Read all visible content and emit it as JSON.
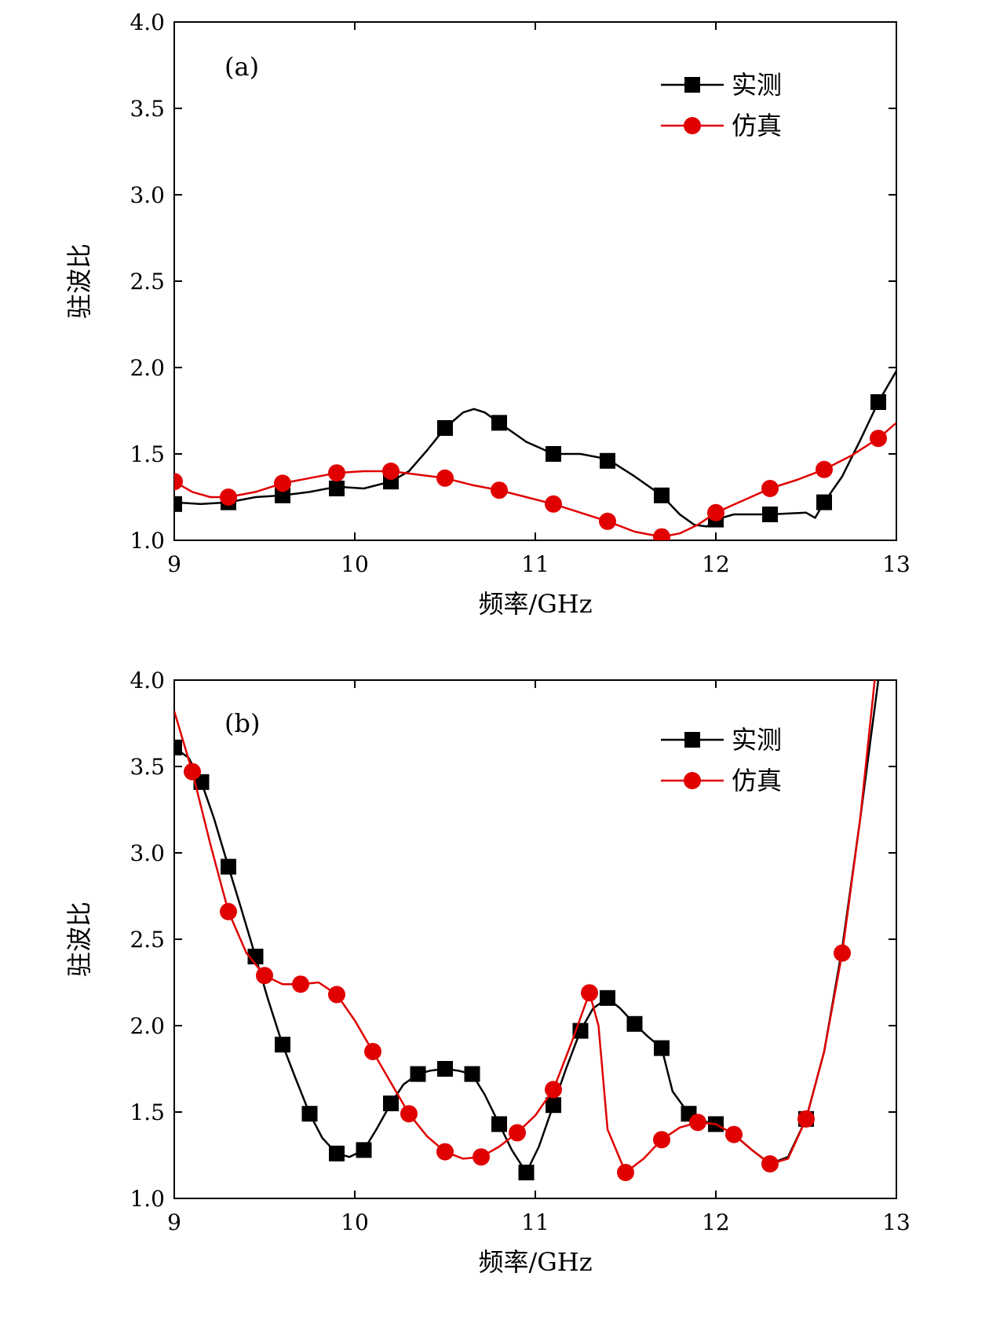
{
  "chart_data": [
    {
      "type": "line",
      "panel_label": "(a)",
      "xlabel": "频率/GHz",
      "ylabel": "驻波比",
      "xlim": [
        9,
        13
      ],
      "ylim": [
        1.0,
        4.0
      ],
      "xticks": [
        9,
        10,
        11,
        12,
        13
      ],
      "yticks": [
        1.0,
        1.5,
        2.0,
        2.5,
        3.0,
        3.5,
        4.0
      ],
      "ytick_labels": [
        "1.0",
        "1.5",
        "2.0",
        "2.5",
        "3.0",
        "3.5",
        "4.0"
      ],
      "legend_position": "top-right",
      "series": [
        {
          "name": "实测",
          "color": "#000000",
          "marker": "square",
          "markers": [
            [
              9.0,
              1.21
            ],
            [
              9.3,
              1.22
            ],
            [
              9.6,
              1.26
            ],
            [
              9.9,
              1.3
            ],
            [
              10.2,
              1.34
            ],
            [
              10.5,
              1.65
            ],
            [
              10.8,
              1.68
            ],
            [
              11.1,
              1.5
            ],
            [
              11.4,
              1.46
            ],
            [
              11.7,
              1.26
            ],
            [
              12.0,
              1.12
            ],
            [
              12.3,
              1.15
            ],
            [
              12.6,
              1.22
            ],
            [
              12.9,
              1.8
            ]
          ],
          "curve": [
            [
              9.0,
              1.22
            ],
            [
              9.15,
              1.21
            ],
            [
              9.3,
              1.22
            ],
            [
              9.45,
              1.25
            ],
            [
              9.6,
              1.26
            ],
            [
              9.75,
              1.28
            ],
            [
              9.9,
              1.31
            ],
            [
              10.05,
              1.3
            ],
            [
              10.2,
              1.34
            ],
            [
              10.3,
              1.4
            ],
            [
              10.4,
              1.52
            ],
            [
              10.5,
              1.65
            ],
            [
              10.6,
              1.74
            ],
            [
              10.66,
              1.76
            ],
            [
              10.72,
              1.74
            ],
            [
              10.8,
              1.68
            ],
            [
              10.95,
              1.57
            ],
            [
              11.1,
              1.5
            ],
            [
              11.25,
              1.5
            ],
            [
              11.4,
              1.47
            ],
            [
              11.55,
              1.37
            ],
            [
              11.7,
              1.26
            ],
            [
              11.8,
              1.15
            ],
            [
              11.88,
              1.09
            ],
            [
              11.95,
              1.08
            ],
            [
              12.0,
              1.12
            ],
            [
              12.1,
              1.15
            ],
            [
              12.3,
              1.15
            ],
            [
              12.5,
              1.16
            ],
            [
              12.55,
              1.13
            ],
            [
              12.6,
              1.22
            ],
            [
              12.7,
              1.37
            ],
            [
              12.8,
              1.58
            ],
            [
              12.9,
              1.8
            ],
            [
              13.0,
              1.98
            ]
          ]
        },
        {
          "name": "仿真",
          "color": "#e00000",
          "marker": "circle",
          "markers": [
            [
              9.0,
              1.34
            ],
            [
              9.3,
              1.25
            ],
            [
              9.6,
              1.33
            ],
            [
              9.9,
              1.39
            ],
            [
              10.2,
              1.4
            ],
            [
              10.5,
              1.36
            ],
            [
              10.8,
              1.29
            ],
            [
              11.1,
              1.21
            ],
            [
              11.4,
              1.11
            ],
            [
              11.7,
              1.02
            ],
            [
              12.0,
              1.16
            ],
            [
              12.3,
              1.3
            ],
            [
              12.6,
              1.41
            ],
            [
              12.9,
              1.59
            ]
          ],
          "curve": [
            [
              9.0,
              1.34
            ],
            [
              9.1,
              1.28
            ],
            [
              9.2,
              1.25
            ],
            [
              9.3,
              1.25
            ],
            [
              9.45,
              1.28
            ],
            [
              9.6,
              1.33
            ],
            [
              9.75,
              1.36
            ],
            [
              9.9,
              1.39
            ],
            [
              10.05,
              1.4
            ],
            [
              10.2,
              1.4
            ],
            [
              10.35,
              1.38
            ],
            [
              10.5,
              1.36
            ],
            [
              10.65,
              1.32
            ],
            [
              10.8,
              1.29
            ],
            [
              10.95,
              1.25
            ],
            [
              11.1,
              1.21
            ],
            [
              11.25,
              1.16
            ],
            [
              11.4,
              1.11
            ],
            [
              11.55,
              1.05
            ],
            [
              11.7,
              1.02
            ],
            [
              11.8,
              1.04
            ],
            [
              11.9,
              1.09
            ],
            [
              12.0,
              1.16
            ],
            [
              12.15,
              1.23
            ],
            [
              12.3,
              1.3
            ],
            [
              12.45,
              1.35
            ],
            [
              12.6,
              1.41
            ],
            [
              12.75,
              1.49
            ],
            [
              12.9,
              1.59
            ],
            [
              13.0,
              1.68
            ]
          ]
        }
      ]
    },
    {
      "type": "line",
      "panel_label": "(b)",
      "xlabel": "频率/GHz",
      "ylabel": "驻波比",
      "xlim": [
        9,
        13
      ],
      "ylim": [
        1.0,
        4.0
      ],
      "xticks": [
        9,
        10,
        11,
        12,
        13
      ],
      "yticks": [
        1.0,
        1.5,
        2.0,
        2.5,
        3.0,
        3.5,
        4.0
      ],
      "ytick_labels": [
        "1.0",
        "1.5",
        "2.0",
        "2.5",
        "3.0",
        "3.5",
        "4.0"
      ],
      "legend_position": "top-right",
      "series": [
        {
          "name": "实测",
          "color": "#000000",
          "marker": "square",
          "markers": [
            [
              9.0,
              3.61
            ],
            [
              9.15,
              3.41
            ],
            [
              9.3,
              2.92
            ],
            [
              9.45,
              2.4
            ],
            [
              9.6,
              1.89
            ],
            [
              9.75,
              1.49
            ],
            [
              9.9,
              1.26
            ],
            [
              10.05,
              1.28
            ],
            [
              10.2,
              1.55
            ],
            [
              10.35,
              1.72
            ],
            [
              10.5,
              1.75
            ],
            [
              10.65,
              1.72
            ],
            [
              10.8,
              1.43
            ],
            [
              10.95,
              1.15
            ],
            [
              11.1,
              1.54
            ],
            [
              11.25,
              1.97
            ],
            [
              11.4,
              2.16
            ],
            [
              11.55,
              2.01
            ],
            [
              11.7,
              1.87
            ],
            [
              11.85,
              1.49
            ],
            [
              12.0,
              1.43
            ],
            [
              12.5,
              1.46
            ]
          ],
          "curve": [
            [
              9.0,
              3.61
            ],
            [
              9.08,
              3.55
            ],
            [
              9.15,
              3.41
            ],
            [
              9.22,
              3.2
            ],
            [
              9.3,
              2.92
            ],
            [
              9.37,
              2.68
            ],
            [
              9.45,
              2.4
            ],
            [
              9.52,
              2.15
            ],
            [
              9.6,
              1.89
            ],
            [
              9.67,
              1.7
            ],
            [
              9.75,
              1.49
            ],
            [
              9.82,
              1.35
            ],
            [
              9.9,
              1.26
            ],
            [
              9.97,
              1.24
            ],
            [
              10.05,
              1.28
            ],
            [
              10.12,
              1.4
            ],
            [
              10.2,
              1.55
            ],
            [
              10.27,
              1.66
            ],
            [
              10.35,
              1.72
            ],
            [
              10.42,
              1.74
            ],
            [
              10.5,
              1.75
            ],
            [
              10.57,
              1.74
            ],
            [
              10.65,
              1.72
            ],
            [
              10.72,
              1.6
            ],
            [
              10.8,
              1.43
            ],
            [
              10.87,
              1.28
            ],
            [
              10.95,
              1.15
            ],
            [
              11.02,
              1.3
            ],
            [
              11.1,
              1.54
            ],
            [
              11.17,
              1.75
            ],
            [
              11.25,
              1.97
            ],
            [
              11.32,
              2.1
            ],
            [
              11.4,
              2.16
            ],
            [
              11.47,
              2.1
            ],
            [
              11.55,
              2.01
            ],
            [
              11.62,
              1.94
            ],
            [
              11.7,
              1.87
            ],
            [
              11.76,
              1.62
            ],
            [
              11.85,
              1.49
            ],
            [
              11.92,
              1.45
            ],
            [
              12.0,
              1.43
            ],
            [
              12.1,
              1.37
            ],
            [
              12.2,
              1.28
            ],
            [
              12.3,
              1.2
            ],
            [
              12.4,
              1.24
            ],
            [
              12.5,
              1.46
            ],
            [
              12.6,
              1.85
            ],
            [
              12.7,
              2.45
            ],
            [
              12.8,
              3.2
            ],
            [
              12.9,
              4.0
            ]
          ]
        },
        {
          "name": "仿真",
          "color": "#e00000",
          "marker": "circle",
          "markers": [
            [
              9.1,
              3.47
            ],
            [
              9.3,
              2.66
            ],
            [
              9.5,
              2.29
            ],
            [
              9.7,
              2.24
            ],
            [
              9.9,
              2.18
            ],
            [
              10.1,
              1.85
            ],
            [
              10.3,
              1.49
            ],
            [
              10.5,
              1.27
            ],
            [
              10.7,
              1.24
            ],
            [
              10.9,
              1.38
            ],
            [
              11.1,
              1.63
            ],
            [
              11.3,
              2.19
            ],
            [
              11.5,
              1.15
            ],
            [
              11.7,
              1.34
            ],
            [
              11.9,
              1.44
            ],
            [
              12.1,
              1.37
            ],
            [
              12.3,
              1.2
            ],
            [
              12.5,
              1.46
            ],
            [
              12.7,
              2.42
            ]
          ],
          "curve": [
            [
              9.0,
              3.82
            ],
            [
              9.1,
              3.47
            ],
            [
              9.2,
              3.05
            ],
            [
              9.3,
              2.66
            ],
            [
              9.4,
              2.42
            ],
            [
              9.5,
              2.29
            ],
            [
              9.6,
              2.24
            ],
            [
              9.7,
              2.24
            ],
            [
              9.8,
              2.25
            ],
            [
              9.9,
              2.18
            ],
            [
              10.0,
              2.03
            ],
            [
              10.1,
              1.85
            ],
            [
              10.2,
              1.67
            ],
            [
              10.3,
              1.49
            ],
            [
              10.4,
              1.36
            ],
            [
              10.5,
              1.27
            ],
            [
              10.6,
              1.23
            ],
            [
              10.7,
              1.24
            ],
            [
              10.8,
              1.3
            ],
            [
              10.9,
              1.38
            ],
            [
              11.0,
              1.48
            ],
            [
              11.1,
              1.63
            ],
            [
              11.2,
              1.9
            ],
            [
              11.3,
              2.19
            ],
            [
              11.35,
              2.0
            ],
            [
              11.4,
              1.4
            ],
            [
              11.5,
              1.15
            ],
            [
              11.6,
              1.23
            ],
            [
              11.7,
              1.34
            ],
            [
              11.8,
              1.41
            ],
            [
              11.9,
              1.44
            ],
            [
              12.0,
              1.43
            ],
            [
              12.1,
              1.37
            ],
            [
              12.2,
              1.28
            ],
            [
              12.3,
              1.2
            ],
            [
              12.4,
              1.23
            ],
            [
              12.5,
              1.46
            ],
            [
              12.6,
              1.85
            ],
            [
              12.7,
              2.42
            ],
            [
              12.8,
              3.2
            ],
            [
              12.88,
              4.0
            ]
          ]
        }
      ]
    }
  ]
}
